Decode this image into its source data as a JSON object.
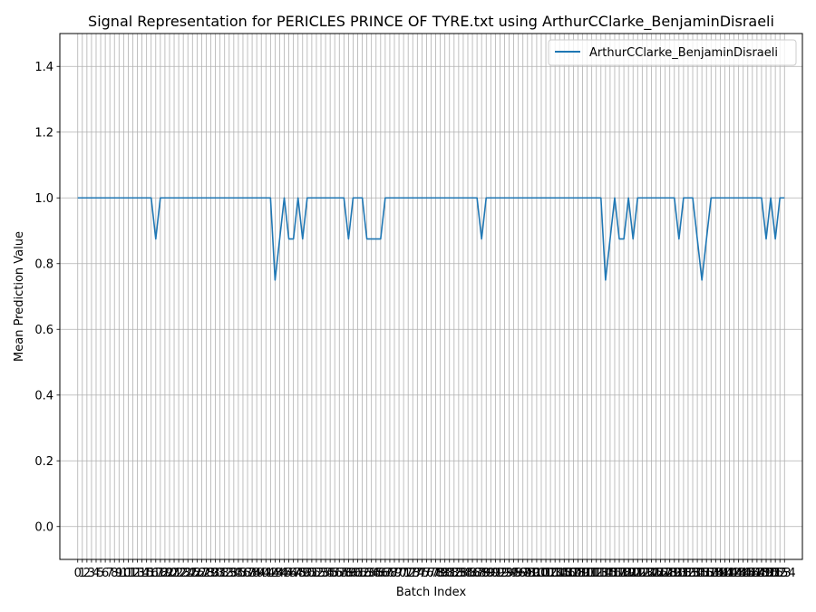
{
  "chart_data": {
    "type": "line",
    "title": "Signal Representation for PERICLES PRINCE OF TYRE.txt using ArthurCClarke_BenjaminDisraeli",
    "xlabel": "Batch Index",
    "ylabel": "Mean Prediction Value",
    "ylim": [
      -0.1,
      1.5
    ],
    "xlim": [
      -3.9,
      157.9
    ],
    "y_ticks": [
      0.0,
      0.2,
      0.4,
      0.6,
      0.8,
      1.0,
      1.2,
      1.4
    ],
    "y_tick_labels": [
      "0.0",
      "0.2",
      "0.4",
      "0.6",
      "0.8",
      "1.0",
      "1.2",
      "1.4"
    ],
    "x_ticks": [
      0,
      1,
      2,
      3,
      4,
      5,
      6,
      7,
      8,
      9,
      10,
      11,
      12,
      13,
      14,
      15,
      16,
      17,
      18,
      19,
      20,
      21,
      22,
      23,
      24,
      25,
      26,
      27,
      28,
      29,
      30,
      31,
      32,
      33,
      34,
      35,
      36,
      37,
      38,
      39,
      40,
      41,
      42,
      43,
      44,
      45,
      46,
      47,
      48,
      49,
      50,
      51,
      52,
      53,
      54,
      55,
      56,
      57,
      58,
      59,
      60,
      61,
      62,
      63,
      64,
      65,
      66,
      67,
      68,
      69,
      70,
      71,
      72,
      73,
      74,
      75,
      76,
      77,
      78,
      79,
      80,
      81,
      82,
      83,
      84,
      85,
      86,
      87,
      88,
      89,
      90,
      91,
      92,
      93,
      94,
      95,
      96,
      97,
      98,
      99,
      100,
      101,
      102,
      103,
      104,
      105,
      106,
      107,
      108,
      109,
      110,
      111,
      112,
      113,
      114,
      115,
      116,
      117,
      118,
      119,
      120,
      121,
      122,
      123,
      124,
      125,
      126,
      127,
      128,
      129,
      130,
      131,
      132,
      133,
      134,
      135,
      136,
      137,
      138,
      139,
      140,
      141,
      142,
      143,
      144,
      145,
      146,
      147,
      148,
      149,
      150,
      151,
      152,
      153,
      154
    ],
    "grid": true,
    "legend_position": "top-right",
    "series": [
      {
        "name": "ArthurCClarke_BenjaminDisraeli",
        "color": "#1f77b4",
        "values": [
          1,
          1,
          1,
          1,
          1,
          1,
          1,
          1,
          1,
          1,
          1,
          1,
          1,
          1,
          1,
          1,
          1,
          0.875,
          1,
          1,
          1,
          1,
          1,
          1,
          1,
          1,
          1,
          1,
          1,
          1,
          1,
          1,
          1,
          1,
          1,
          1,
          1,
          1,
          1,
          1,
          1,
          1,
          1,
          0.75,
          0.875,
          1,
          0.875,
          0.875,
          1,
          0.875,
          1,
          1,
          1,
          1,
          1,
          1,
          1,
          1,
          1,
          0.875,
          1,
          1,
          1,
          0.875,
          0.875,
          0.875,
          0.875,
          1,
          1,
          1,
          1,
          1,
          1,
          1,
          1,
          1,
          1,
          1,
          1,
          1,
          1,
          1,
          1,
          1,
          1,
          1,
          1,
          1,
          0.875,
          1,
          1,
          1,
          1,
          1,
          1,
          1,
          1,
          1,
          1,
          1,
          1,
          1,
          1,
          1,
          1,
          1,
          1,
          1,
          1,
          1,
          1,
          1,
          1,
          1,
          1,
          0.75,
          0.875,
          1,
          0.875,
          0.875,
          1,
          0.875,
          1,
          1,
          1,
          1,
          1,
          1,
          1,
          1,
          1,
          0.875,
          1,
          1,
          1,
          0.875,
          0.75,
          0.875,
          1,
          1,
          1,
          1,
          1,
          1,
          1,
          1,
          1,
          1,
          1,
          1,
          0.875,
          1,
          0.875,
          1,
          1
        ]
      }
    ]
  }
}
